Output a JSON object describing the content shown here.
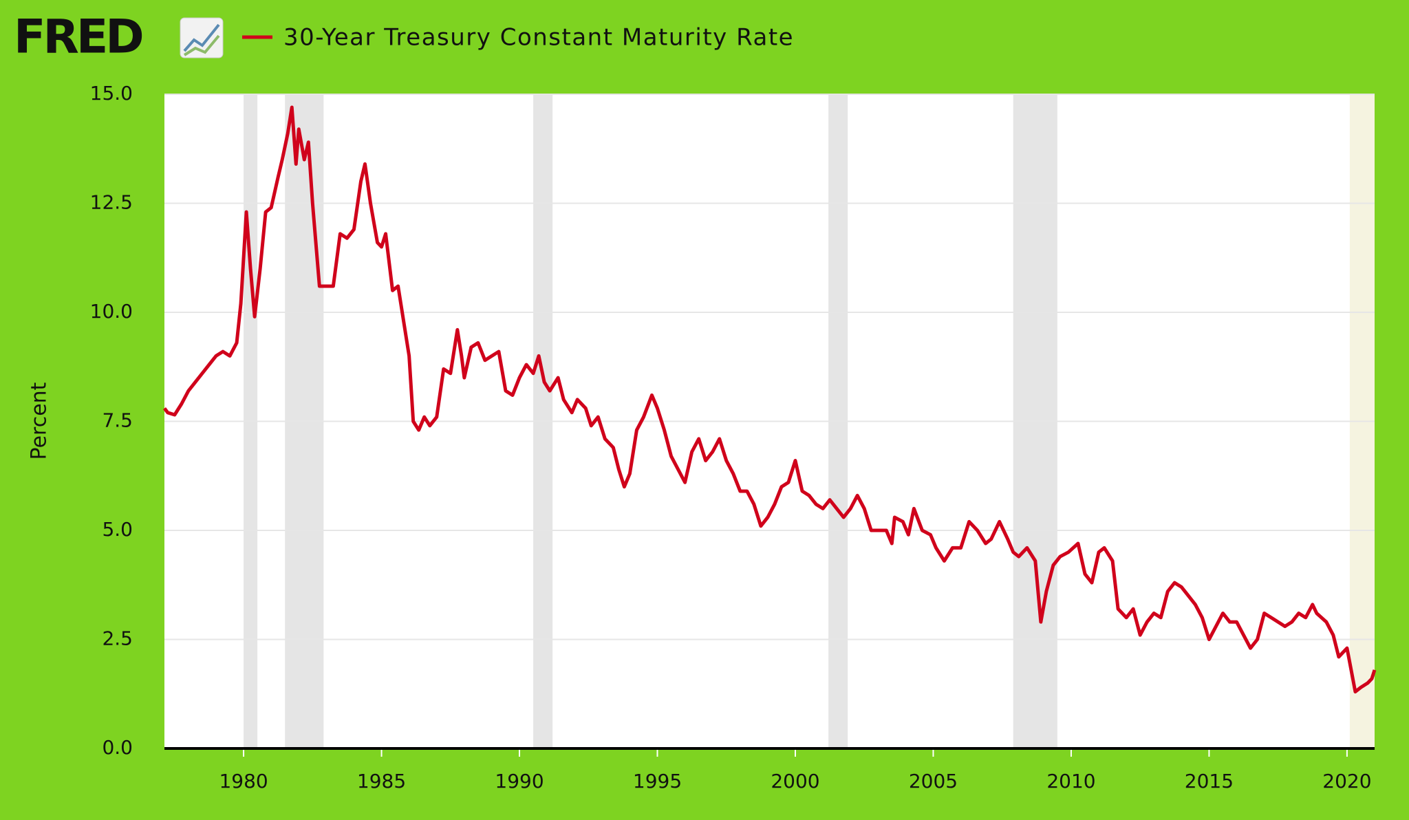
{
  "chart_data": {
    "type": "line",
    "logo": "FRED",
    "y_label": "Percent",
    "background": "#7ed321",
    "grid": true,
    "recession_color": "#e5e5e5",
    "recessions": [
      [
        1980.0,
        1980.5
      ],
      [
        1981.5,
        1982.9
      ],
      [
        1990.5,
        1991.2
      ],
      [
        2001.2,
        2001.9
      ],
      [
        2007.9,
        2009.5
      ]
    ],
    "projection_color": "#f5f3e0",
    "projections": [
      [
        2020.1,
        2021.0
      ]
    ],
    "xlim": [
      1977.13,
      2021.0
    ],
    "xticks": [
      1980,
      1985,
      1990,
      1995,
      2000,
      2005,
      2010,
      2015,
      2020
    ],
    "ylim": [
      0,
      15
    ],
    "yticks": [
      {
        "value": 0,
        "label": "0.0"
      },
      {
        "value": 2.5,
        "label": "2.5"
      },
      {
        "value": 5,
        "label": "5.0"
      },
      {
        "value": 7.5,
        "label": "7.5"
      },
      {
        "value": 10,
        "label": "10.0"
      },
      {
        "value": 12.5,
        "label": "12.5"
      },
      {
        "value": 15,
        "label": "15.0"
      }
    ],
    "x": [
      1977.13,
      1977.25,
      1977.5,
      1977.75,
      1978.0,
      1978.25,
      1978.5,
      1978.75,
      1979.0,
      1979.25,
      1979.5,
      1979.75,
      1979.9,
      1980.1,
      1980.25,
      1980.4,
      1980.6,
      1980.8,
      1981.0,
      1981.25,
      1981.4,
      1981.6,
      1981.75,
      1981.9,
      1982.0,
      1982.2,
      1982.35,
      1982.5,
      1982.75,
      1983.0,
      1983.25,
      1983.5,
      1983.75,
      1984.0,
      1984.25,
      1984.4,
      1984.6,
      1984.85,
      1985.0,
      1985.15,
      1985.4,
      1985.6,
      1985.85,
      1986.0,
      1986.15,
      1986.35,
      1986.55,
      1986.75,
      1987.0,
      1987.25,
      1987.5,
      1987.75,
      1987.9,
      1988.0,
      1988.25,
      1988.5,
      1988.75,
      1989.0,
      1989.25,
      1989.5,
      1989.75,
      1990.0,
      1990.25,
      1990.5,
      1990.7,
      1990.9,
      1991.1,
      1991.4,
      1991.6,
      1991.9,
      1992.1,
      1992.4,
      1992.6,
      1992.85,
      1993.1,
      1993.4,
      1993.6,
      1993.8,
      1994.0,
      1994.25,
      1994.5,
      1994.8,
      1995.0,
      1995.25,
      1995.5,
      1995.75,
      1996.0,
      1996.25,
      1996.5,
      1996.75,
      1997.0,
      1997.25,
      1997.5,
      1997.75,
      1998.0,
      1998.25,
      1998.5,
      1998.75,
      1999.0,
      1999.25,
      1999.5,
      1999.75,
      2000.0,
      2000.25,
      2000.5,
      2000.75,
      2001.0,
      2001.25,
      2001.5,
      2001.75,
      2002.0,
      2002.25,
      2002.5,
      2002.75,
      2003.0,
      2003.3,
      2003.5,
      2003.6,
      2003.9,
      2004.1,
      2004.3,
      2004.6,
      2004.9,
      2005.1,
      2005.4,
      2005.7,
      2006.0,
      2006.3,
      2006.6,
      2006.9,
      2007.1,
      2007.4,
      2007.7,
      2007.9,
      2008.1,
      2008.4,
      2008.7,
      2008.9,
      2009.1,
      2009.35,
      2009.6,
      2009.9,
      2010.25,
      2010.5,
      2010.75,
      2011.0,
      2011.2,
      2011.5,
      2011.7,
      2012.0,
      2012.25,
      2012.5,
      2012.75,
      2013.0,
      2013.25,
      2013.5,
      2013.75,
      2014.0,
      2014.25,
      2014.5,
      2014.75,
      2015.0,
      2015.25,
      2015.5,
      2015.75,
      2016.0,
      2016.25,
      2016.5,
      2016.75,
      2017.0,
      2017.25,
      2017.5,
      2017.75,
      2018.0,
      2018.25,
      2018.5,
      2018.75,
      2018.9,
      2019.25,
      2019.5,
      2019.7,
      2020.0,
      2020.15,
      2020.3,
      2020.5,
      2020.75,
      2020.9,
      2021.0
    ],
    "series": [
      {
        "name": "30-Year Treasury Constant Maturity Rate",
        "color": "#d0021b",
        "values": [
          7.8,
          7.7,
          7.65,
          7.9,
          8.2,
          8.4,
          8.6,
          8.8,
          9.0,
          9.1,
          9.0,
          9.3,
          10.2,
          12.3,
          11.0,
          9.9,
          11.0,
          12.3,
          12.4,
          13.1,
          13.5,
          14.1,
          14.7,
          13.4,
          14.2,
          13.5,
          13.9,
          12.5,
          10.6,
          10.6,
          10.6,
          11.8,
          11.7,
          11.9,
          13.0,
          13.4,
          12.5,
          11.6,
          11.5,
          11.8,
          10.5,
          10.6,
          9.6,
          9.0,
          7.5,
          7.3,
          7.6,
          7.4,
          7.6,
          8.7,
          8.6,
          9.6,
          9.0,
          8.5,
          9.2,
          9.3,
          8.9,
          9.0,
          9.1,
          8.2,
          8.1,
          8.5,
          8.8,
          8.6,
          9.0,
          8.4,
          8.2,
          8.5,
          8.0,
          7.7,
          8.0,
          7.8,
          7.4,
          7.6,
          7.1,
          6.9,
          6.4,
          6.0,
          6.3,
          7.3,
          7.6,
          8.1,
          7.8,
          7.3,
          6.7,
          6.4,
          6.1,
          6.8,
          7.1,
          6.6,
          6.8,
          7.1,
          6.6,
          6.3,
          5.9,
          5.9,
          5.6,
          5.1,
          5.3,
          5.6,
          6.0,
          6.1,
          6.6,
          5.9,
          5.8,
          5.6,
          5.5,
          5.7,
          5.5,
          5.3,
          5.5,
          5.8,
          5.5,
          5.0,
          5.0,
          5.0,
          4.7,
          5.3,
          5.2,
          4.9,
          5.5,
          5.0,
          4.9,
          4.6,
          4.3,
          4.6,
          4.6,
          5.2,
          5.0,
          4.7,
          4.8,
          5.2,
          4.8,
          4.5,
          4.4,
          4.6,
          4.3,
          2.9,
          3.6,
          4.2,
          4.4,
          4.5,
          4.7,
          4.0,
          3.8,
          4.5,
          4.6,
          4.3,
          3.2,
          3.0,
          3.2,
          2.6,
          2.9,
          3.1,
          3.0,
          3.6,
          3.8,
          3.7,
          3.5,
          3.3,
          3.0,
          2.5,
          2.8,
          3.1,
          2.9,
          2.9,
          2.6,
          2.3,
          2.5,
          3.1,
          3.0,
          2.9,
          2.8,
          2.9,
          3.1,
          3.0,
          3.3,
          3.1,
          2.9,
          2.6,
          2.1,
          2.3,
          1.8,
          1.3,
          1.4,
          1.5,
          1.6,
          1.8
        ]
      }
    ]
  }
}
